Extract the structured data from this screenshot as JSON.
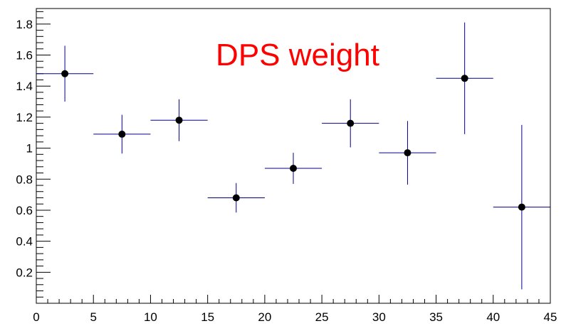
{
  "chart_data": {
    "type": "scatter",
    "title": "DPS weight",
    "xlabel": "",
    "ylabel": "",
    "xlim": [
      0,
      45
    ],
    "ylim": [
      0,
      1.9
    ],
    "x_ticks": [
      0,
      5,
      10,
      15,
      20,
      25,
      30,
      35,
      40,
      45
    ],
    "x_tick_labels": [
      "0",
      "5",
      "10",
      "15",
      "20",
      "25",
      "30",
      "35",
      "40",
      "45"
    ],
    "y_ticks": [
      0.2,
      0.4,
      0.6,
      0.8,
      1.0,
      1.2,
      1.4,
      1.6,
      1.8
    ],
    "y_tick_labels": [
      "0.2",
      "0.4",
      "0.6",
      "0.8",
      "1",
      "1.2",
      "1.4",
      "1.6",
      "1.8"
    ],
    "grid": false,
    "legend": "none",
    "series": [
      {
        "x": [
          2.5,
          7.5,
          12.5,
          17.5,
          22.5,
          27.5,
          32.5,
          37.5,
          42.5
        ],
        "x_err": [
          2.5,
          2.5,
          2.5,
          2.5,
          2.5,
          2.5,
          2.5,
          2.5,
          2.5
        ],
        "y": [
          1.48,
          1.09,
          1.18,
          0.68,
          0.87,
          1.16,
          0.97,
          1.45,
          0.62
        ],
        "y_err": [
          0.18,
          0.125,
          0.135,
          0.095,
          0.1,
          0.155,
          0.205,
          0.36,
          0.53
        ]
      }
    ],
    "colors": {
      "marker": "#000000",
      "error_bars": "#00008b",
      "title": "#ff0000",
      "axes": "#000000"
    }
  }
}
